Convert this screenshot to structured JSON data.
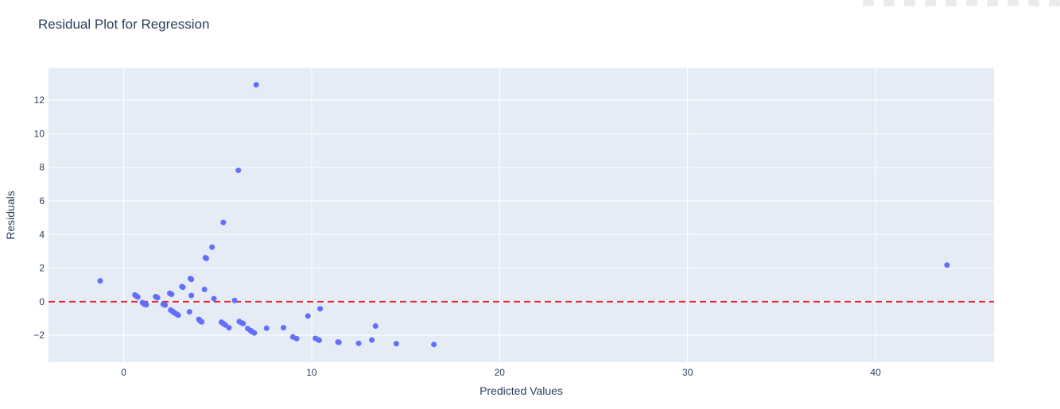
{
  "chart_data": {
    "type": "scatter",
    "title": "Residual Plot for Regression",
    "xlabel": "Predicted Values",
    "ylabel": "Residuals",
    "xlim": [
      -4,
      46.3
    ],
    "ylim": [
      -3.6,
      13.9
    ],
    "xticks": [
      0,
      10,
      20,
      30,
      40
    ],
    "yticks": [
      -2,
      0,
      2,
      4,
      6,
      8,
      10,
      12
    ],
    "grid": true,
    "legend": false,
    "colors": {
      "marker": "#636efa",
      "reference_line": "#e8262b",
      "plot_bg": "#e5ecf6",
      "grid": "#ffffff",
      "text": "#2a3f5f"
    },
    "reference_line": {
      "y": 0,
      "style": "dashed"
    },
    "points": [
      {
        "x": -1.25,
        "y": 1.24
      },
      {
        "x": 0.6,
        "y": 0.4
      },
      {
        "x": 0.65,
        "y": 0.35
      },
      {
        "x": 0.7,
        "y": 0.32
      },
      {
        "x": 0.75,
        "y": 0.28
      },
      {
        "x": 1.0,
        "y": -0.05
      },
      {
        "x": 1.05,
        "y": -0.1
      },
      {
        "x": 1.1,
        "y": -0.15
      },
      {
        "x": 1.2,
        "y": -0.18
      },
      {
        "x": 1.7,
        "y": 0.3
      },
      {
        "x": 1.75,
        "y": 0.27
      },
      {
        "x": 1.8,
        "y": 0.24
      },
      {
        "x": 2.1,
        "y": -0.15
      },
      {
        "x": 2.2,
        "y": -0.2
      },
      {
        "x": 2.45,
        "y": 0.5
      },
      {
        "x": 2.5,
        "y": 0.47
      },
      {
        "x": 2.55,
        "y": 0.44
      },
      {
        "x": 2.5,
        "y": -0.5
      },
      {
        "x": 2.6,
        "y": -0.58
      },
      {
        "x": 2.7,
        "y": -0.66
      },
      {
        "x": 2.8,
        "y": -0.73
      },
      {
        "x": 2.9,
        "y": -0.8
      },
      {
        "x": 3.1,
        "y": 0.9
      },
      {
        "x": 3.15,
        "y": 0.86
      },
      {
        "x": 3.5,
        "y": -0.6
      },
      {
        "x": 3.55,
        "y": 1.38
      },
      {
        "x": 3.6,
        "y": 1.33
      },
      {
        "x": 3.6,
        "y": 0.37
      },
      {
        "x": 4.0,
        "y": -1.05
      },
      {
        "x": 4.05,
        "y": -1.12
      },
      {
        "x": 4.1,
        "y": -1.18
      },
      {
        "x": 4.15,
        "y": -1.2
      },
      {
        "x": 4.3,
        "y": 0.73
      },
      {
        "x": 4.35,
        "y": 2.62
      },
      {
        "x": 4.4,
        "y": 2.58
      },
      {
        "x": 4.7,
        "y": 3.25
      },
      {
        "x": 4.8,
        "y": 0.18
      },
      {
        "x": 5.2,
        "y": -1.22
      },
      {
        "x": 5.3,
        "y": -1.3
      },
      {
        "x": 5.4,
        "y": -1.38
      },
      {
        "x": 5.3,
        "y": 4.72
      },
      {
        "x": 5.6,
        "y": -1.55
      },
      {
        "x": 5.9,
        "y": 0.07
      },
      {
        "x": 6.1,
        "y": 7.82
      },
      {
        "x": 6.15,
        "y": -1.18
      },
      {
        "x": 6.25,
        "y": -1.25
      },
      {
        "x": 6.35,
        "y": -1.3
      },
      {
        "x": 6.6,
        "y": -1.6
      },
      {
        "x": 6.75,
        "y": -1.72
      },
      {
        "x": 6.85,
        "y": -1.8
      },
      {
        "x": 6.95,
        "y": -1.86
      },
      {
        "x": 7.05,
        "y": 12.92
      },
      {
        "x": 7.6,
        "y": -1.58
      },
      {
        "x": 8.5,
        "y": -1.55
      },
      {
        "x": 9.0,
        "y": -2.1
      },
      {
        "x": 9.2,
        "y": -2.2
      },
      {
        "x": 9.8,
        "y": -0.85
      },
      {
        "x": 10.2,
        "y": -2.18
      },
      {
        "x": 10.35,
        "y": -2.27
      },
      {
        "x": 10.4,
        "y": -2.3
      },
      {
        "x": 10.45,
        "y": -0.42
      },
      {
        "x": 11.4,
        "y": -2.4
      },
      {
        "x": 11.45,
        "y": -2.42
      },
      {
        "x": 12.5,
        "y": -2.48
      },
      {
        "x": 13.2,
        "y": -2.28
      },
      {
        "x": 13.4,
        "y": -1.45
      },
      {
        "x": 14.5,
        "y": -2.5
      },
      {
        "x": 16.5,
        "y": -2.55
      },
      {
        "x": 43.8,
        "y": 2.18
      }
    ]
  }
}
